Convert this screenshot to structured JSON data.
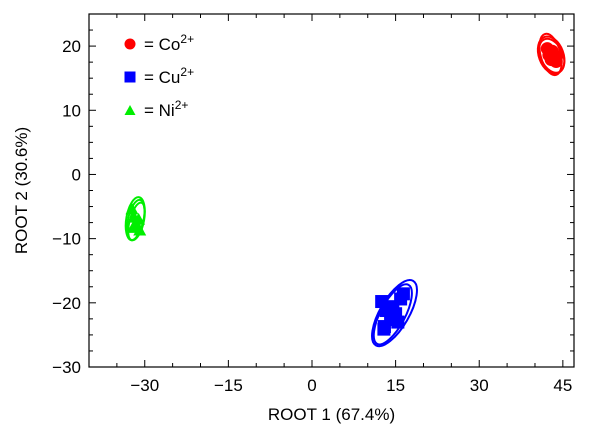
{
  "chart_data": {
    "type": "scatter",
    "title": "",
    "xlabel": "ROOT 1 (67.4%)",
    "ylabel": "ROOT 2 (30.6%)",
    "xlim": [
      -40,
      47
    ],
    "ylim": [
      -30,
      25
    ],
    "xticks": [
      -30,
      -15,
      0,
      15,
      30,
      45
    ],
    "yticks": [
      -30,
      -20,
      -10,
      0,
      10,
      20
    ],
    "grid": false,
    "legend_position": "top-left",
    "series": [
      {
        "name": "= Co2+",
        "label_base": "= Co",
        "label_sup": "2+",
        "marker": "circle",
        "color": "#ff0000",
        "x": [
          42.2,
          42.8,
          43.3,
          43.8,
          42.5,
          43.1,
          43.9,
          42.9
        ],
        "y": [
          19.6,
          18.9,
          18.2,
          17.6,
          18.6,
          19.2,
          18.4,
          17.9
        ],
        "ellipses": [
          {
            "cx": 42.9,
            "cy": 18.6,
            "rx": 2.2,
            "ry": 3.0,
            "angle": -20
          },
          {
            "cx": 43.0,
            "cy": 18.5,
            "rx": 2.0,
            "ry": 2.8,
            "angle": -25
          },
          {
            "cx": 42.8,
            "cy": 18.7,
            "rx": 1.8,
            "ry": 3.3,
            "angle": -15
          }
        ]
      },
      {
        "name": "= Cu2+",
        "label_base": "= Cu",
        "label_sup": "2+",
        "marker": "square",
        "color": "#0000ff",
        "x": [
          12.5,
          13.3,
          14.1,
          15.0,
          15.9,
          13.0,
          14.5,
          16.4,
          12.9,
          15.4
        ],
        "y": [
          -19.8,
          -21.2,
          -22.6,
          -21.7,
          -19.4,
          -23.7,
          -20.6,
          -18.6,
          -24.1,
          -23.0
        ],
        "ellipses": [
          {
            "cx": 14.8,
            "cy": -21.6,
            "rx": 2.6,
            "ry": 5.8,
            "angle": 30
          },
          {
            "cx": 14.5,
            "cy": -21.8,
            "rx": 2.2,
            "ry": 5.2,
            "angle": 28
          }
        ]
      },
      {
        "name": "= Ni2+",
        "label_base": "= Ni",
        "label_sup": "2+",
        "marker": "triangle",
        "color": "#00ee00",
        "x": [
          -32.3,
          -31.9,
          -31.4,
          -30.9,
          -32.1,
          -31.1
        ],
        "y": [
          -5.3,
          -6.6,
          -7.8,
          -8.6,
          -8.2,
          -6.9
        ],
        "ellipses": [
          {
            "cx": -31.6,
            "cy": -7.1,
            "rx": 1.4,
            "ry": 3.2,
            "angle": 12
          },
          {
            "cx": -31.5,
            "cy": -7.3,
            "rx": 1.2,
            "ry": 3.0,
            "angle": 15
          },
          {
            "cx": -31.7,
            "cy": -6.9,
            "rx": 1.6,
            "ry": 3.4,
            "angle": 10
          }
        ]
      }
    ]
  }
}
